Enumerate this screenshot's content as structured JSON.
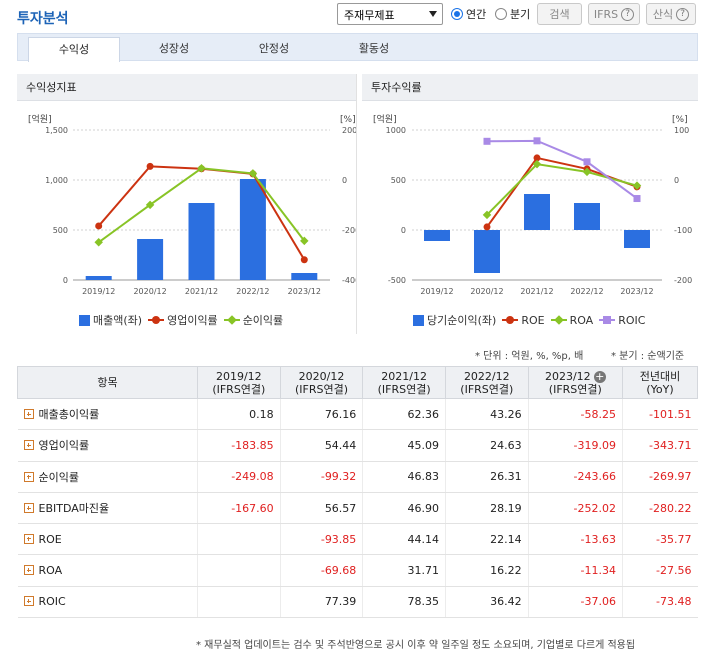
{
  "header": {
    "title": "투자분석",
    "select_value": "주재무제표",
    "radio_annual": "연간",
    "radio_quarter": "분기",
    "search_label": "검색",
    "ifrs_label": "IFRS",
    "calc_label": "산식"
  },
  "tabs": [
    "수익성",
    "성장성",
    "안정성",
    "활동성"
  ],
  "left_chart": {
    "title": "수익성지표",
    "left_unit": "[억원]",
    "right_unit": "[%]",
    "left_ticks": [
      "1,500",
      "1,000",
      "500",
      "0"
    ],
    "right_ticks": [
      "200",
      "0",
      "-200",
      "-400"
    ],
    "legend": [
      "매출액(좌)",
      "영업이익률",
      "순이익률"
    ]
  },
  "right_chart": {
    "title": "투자수익률",
    "left_unit": "[억원]",
    "right_unit": "[%]",
    "left_ticks": [
      "1000",
      "500",
      "0",
      "-500"
    ],
    "right_ticks": [
      "100",
      "0",
      "-100",
      "-200"
    ],
    "legend": [
      "당기순이익(좌)",
      "ROE",
      "ROA",
      "ROIC"
    ]
  },
  "colors": {
    "bar": "#2b6fe0",
    "op_margin": "#cc3311",
    "net_margin": "#88c426",
    "roe": "#cc3311",
    "roa": "#88c426",
    "roic": "#a98ae6"
  },
  "chart_data": [
    {
      "type": "bar",
      "title": "수익성지표",
      "categories": [
        "2019/12",
        "2020/12",
        "2021/12",
        "2022/12",
        "2023/12"
      ],
      "ylim_left": [
        0,
        1500
      ],
      "ylim_right": [
        -400,
        200
      ],
      "series": [
        {
          "name": "매출액(좌)",
          "type": "bar",
          "axis": "left",
          "values": [
            40,
            410,
            770,
            1010,
            70
          ]
        },
        {
          "name": "영업이익률",
          "type": "line",
          "axis": "right",
          "values": [
            -183.85,
            54.44,
            45.09,
            24.63,
            -319.09
          ]
        },
        {
          "name": "순이익률",
          "type": "line",
          "axis": "right",
          "values": [
            -249.08,
            -99.32,
            46.83,
            26.31,
            -243.66
          ]
        }
      ],
      "legend_position": "bottom"
    },
    {
      "type": "bar",
      "title": "투자수익률",
      "categories": [
        "2019/12",
        "2020/12",
        "2021/12",
        "2022/12",
        "2023/12"
      ],
      "ylim_left": [
        -500,
        1000
      ],
      "ylim_right": [
        -200,
        100
      ],
      "series": [
        {
          "name": "당기순이익(좌)",
          "type": "bar",
          "axis": "left",
          "values": [
            -110,
            -430,
            360,
            270,
            -180
          ]
        },
        {
          "name": "ROE",
          "type": "line",
          "axis": "right",
          "values": [
            null,
            -93.85,
            44.14,
            22.14,
            -13.63
          ]
        },
        {
          "name": "ROA",
          "type": "line",
          "axis": "right",
          "values": [
            null,
            -69.68,
            31.71,
            16.22,
            -11.34
          ]
        },
        {
          "name": "ROIC",
          "type": "line",
          "axis": "right",
          "values": [
            null,
            77.39,
            78.35,
            36.42,
            -37.06
          ]
        }
      ],
      "legend_position": "bottom"
    }
  ],
  "notes": {
    "unit": "* 단위 : 억원, %, %p, 배",
    "quarter": "* 분기 : 순액기준"
  },
  "table": {
    "head_item": "항목",
    "columns": [
      [
        "2019/12",
        "(IFRS연결)"
      ],
      [
        "2020/12",
        "(IFRS연결)"
      ],
      [
        "2021/12",
        "(IFRS연결)"
      ],
      [
        "2022/12",
        "(IFRS연결)"
      ],
      [
        "2023/12",
        "(IFRS연결)"
      ],
      [
        "전년대비",
        "(YoY)"
      ]
    ],
    "rows": [
      {
        "label": "매출총이익률",
        "values": [
          "0.18",
          "76.16",
          "62.36",
          "43.26",
          "-58.25",
          "-101.51"
        ]
      },
      {
        "label": "영업이익률",
        "values": [
          "-183.85",
          "54.44",
          "45.09",
          "24.63",
          "-319.09",
          "-343.71"
        ]
      },
      {
        "label": "순이익률",
        "values": [
          "-249.08",
          "-99.32",
          "46.83",
          "26.31",
          "-243.66",
          "-269.97"
        ]
      },
      {
        "label": "EBITDA마진율",
        "values": [
          "-167.60",
          "56.57",
          "46.90",
          "28.19",
          "-252.02",
          "-280.22"
        ]
      },
      {
        "label": "ROE",
        "values": [
          "",
          "-93.85",
          "44.14",
          "22.14",
          "-13.63",
          "-35.77"
        ]
      },
      {
        "label": "ROA",
        "values": [
          "",
          "-69.68",
          "31.71",
          "16.22",
          "-11.34",
          "-27.56"
        ]
      },
      {
        "label": "ROIC",
        "values": [
          "",
          "77.39",
          "78.35",
          "36.42",
          "-37.06",
          "-73.48"
        ]
      }
    ]
  },
  "footer": "* 재무실적 업데이트는 검수 및 주석반영으로 공시 이후 약 일주일 정도 소요되며, 기업별로 다르게 적용됩"
}
